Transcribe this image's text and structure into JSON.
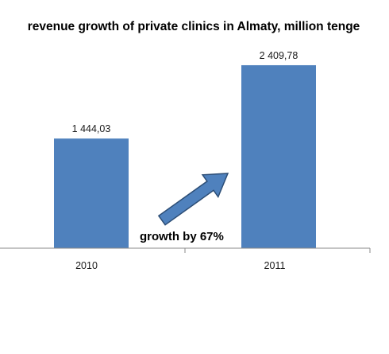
{
  "chart_data": {
    "type": "bar",
    "title": "revenue growth of private clinics in Almaty, million tenge",
    "categories": [
      "2010",
      "2011"
    ],
    "values": [
      1444.03,
      2409.78
    ],
    "data_labels": [
      "1 444,03",
      "2 409,78"
    ],
    "xlabel": "",
    "ylabel": "",
    "grid": false,
    "legend": "none",
    "annotation": "growth by 67%",
    "bar_color": "#4f81bd",
    "arrow_color": "#4f81bd",
    "arrow_edge_color": "#2c4d75"
  }
}
